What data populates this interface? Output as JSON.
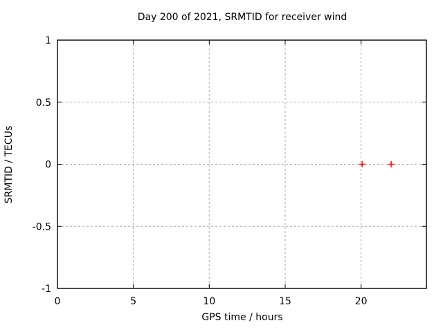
{
  "chart_data": {
    "type": "scatter",
    "title": "Day 200 of 2021, SRMTID for receiver wind",
    "xlabel": "GPS time / hours",
    "ylabel": "SRMTID / TECUs",
    "xlim": [
      0,
      24.3
    ],
    "ylim": [
      -1,
      1
    ],
    "xticks": [
      0,
      5,
      10,
      15,
      20
    ],
    "xtick_labels": [
      "0",
      "5",
      "10",
      "15",
      "20"
    ],
    "yticks": [
      -1,
      -0.5,
      0,
      0.5,
      1
    ],
    "ytick_labels": [
      "-1",
      "-0.5",
      "0",
      "0.5",
      "1"
    ],
    "grid": true,
    "legend": "none",
    "series": [
      {
        "name": "SRMTID",
        "marker": "plus",
        "color": "#ff0000",
        "points": [
          [
            20.07,
            0
          ],
          [
            21.98,
            0
          ]
        ]
      }
    ],
    "colors": {
      "background": "#ffffff",
      "axis": "#000000",
      "grid": "#a8a8a8",
      "text": "#000000"
    }
  }
}
